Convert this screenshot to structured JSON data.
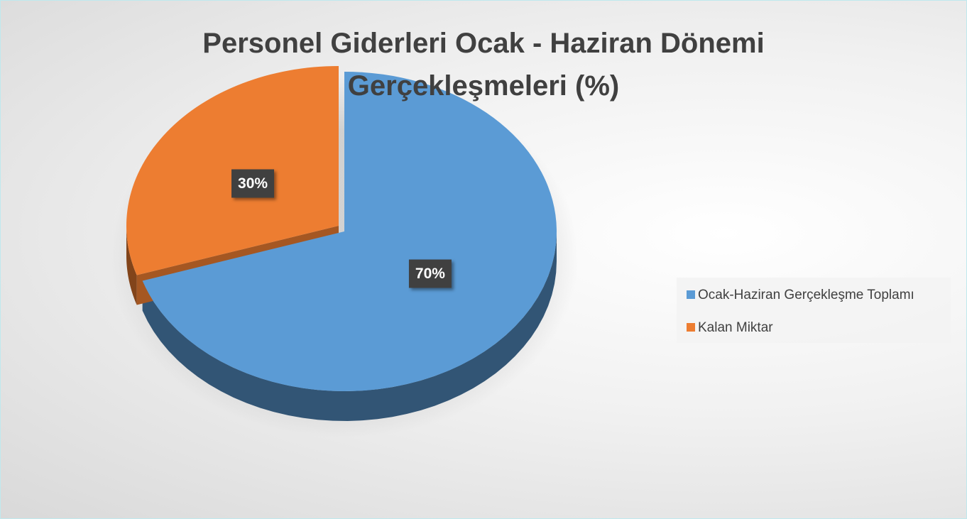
{
  "chart_data": {
    "type": "pie",
    "title": "Personel Giderleri Ocak - Haziran Dönemi Gerçekleşmeleri (%)",
    "categories": [
      "Ocak-Haziran Gerçekleşme Toplamı",
      "Kalan Miktar"
    ],
    "values": [
      70,
      30
    ],
    "value_labels": [
      "70%",
      "30%"
    ],
    "colors": [
      "#5b9bd5",
      "#ed7d31"
    ],
    "legend": "right"
  }
}
